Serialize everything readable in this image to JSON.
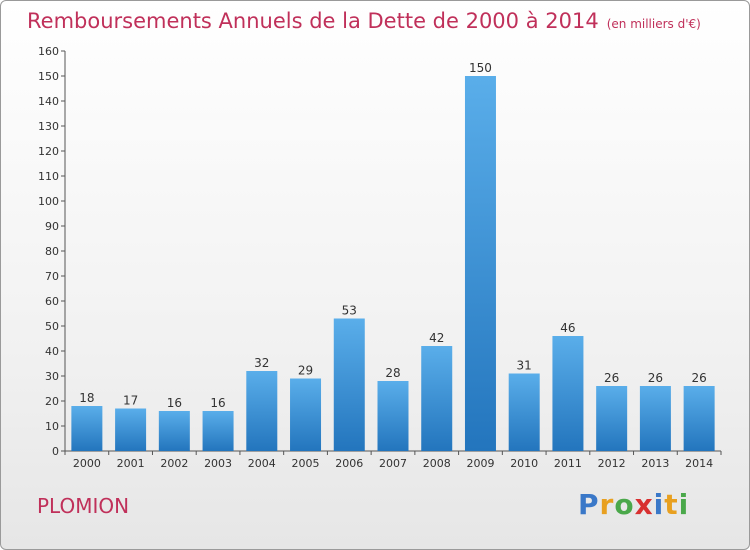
{
  "header": {
    "title": "Remboursements Annuels de la Dette de 2000 à 2014",
    "unit": "(en milliers d'€)"
  },
  "footer": {
    "town": "PLOMION",
    "logo": "Proxiti"
  },
  "colors": {
    "bar_top": "#5aaeea",
    "bar_bottom": "#2375bd",
    "title": "#c0305a"
  },
  "chart_data": {
    "type": "bar",
    "title": "Remboursements Annuels de la Dette de 2000 à 2014",
    "categories": [
      "2000",
      "2001",
      "2002",
      "2003",
      "2004",
      "2005",
      "2006",
      "2007",
      "2008",
      "2009",
      "2010",
      "2011",
      "2012",
      "2013",
      "2014"
    ],
    "values": [
      18,
      17,
      16,
      16,
      32,
      29,
      53,
      28,
      42,
      150,
      31,
      46,
      26,
      26,
      26
    ],
    "ylim": [
      0,
      160
    ],
    "yticks": [
      0,
      10,
      20,
      30,
      40,
      50,
      60,
      70,
      80,
      90,
      100,
      110,
      120,
      130,
      140,
      150,
      160
    ],
    "grid": false,
    "legend": "none"
  }
}
